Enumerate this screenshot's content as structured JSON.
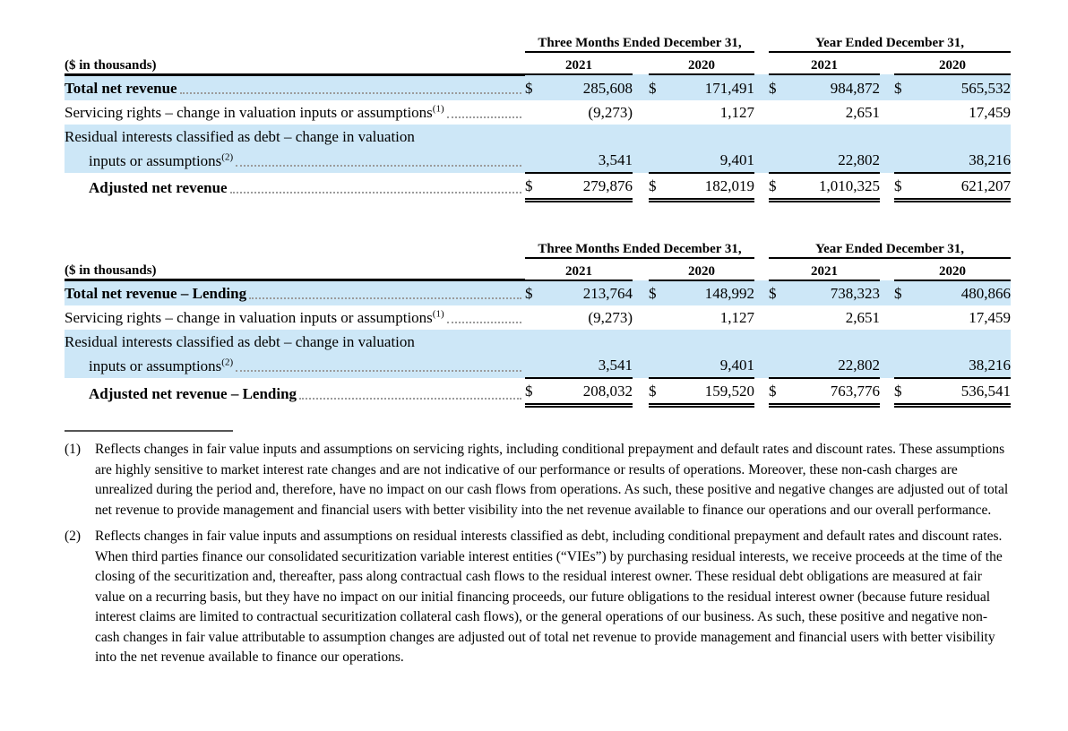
{
  "dollar": "$",
  "highlight_color": "#cde7f7",
  "tables": [
    {
      "name": "adjusted-net-revenue",
      "group_headers": [
        "Three Months Ended December 31,",
        "Year Ended December 31,"
      ],
      "label_header": "($ in thousands)",
      "col_headers": [
        "2021",
        "2020",
        "2021",
        "2020"
      ],
      "rows": [
        {
          "label": "Total net revenue",
          "values": [
            "285,608",
            "171,491",
            "984,872",
            "565,532"
          ]
        },
        {
          "label": "Servicing rights – change in valuation inputs or assumptions",
          "sup": "(1)",
          "values": [
            "(9,273)",
            "1,127",
            "2,651",
            "17,459"
          ]
        },
        {
          "label": "Residual interests classified as debt – change in valuation",
          "label2": "inputs or assumptions",
          "sup": "(2)",
          "values": [
            "3,541",
            "9,401",
            "22,802",
            "38,216"
          ]
        },
        {
          "label": "Adjusted net revenue",
          "values": [
            "279,876",
            "182,019",
            "1,010,325",
            "621,207"
          ]
        }
      ]
    },
    {
      "name": "adjusted-net-revenue-lending",
      "group_headers": [
        "Three Months Ended December 31,",
        "Year Ended December 31,"
      ],
      "label_header": "($ in thousands)",
      "col_headers": [
        "2021",
        "2020",
        "2021",
        "2020"
      ],
      "rows": [
        {
          "label": "Total net revenue – Lending",
          "values": [
            "213,764",
            "148,992",
            "738,323",
            "480,866"
          ]
        },
        {
          "label": "Servicing rights – change in valuation inputs or assumptions",
          "sup": "(1)",
          "values": [
            "(9,273)",
            "1,127",
            "2,651",
            "17,459"
          ]
        },
        {
          "label": "Residual interests classified as debt – change in valuation",
          "label2": "inputs or assumptions",
          "sup": "(2)",
          "values": [
            "3,541",
            "9,401",
            "22,802",
            "38,216"
          ]
        },
        {
          "label": "Adjusted net revenue – Lending",
          "values": [
            "208,032",
            "159,520",
            "763,776",
            "536,541"
          ]
        }
      ]
    }
  ],
  "footnotes": [
    {
      "num": "(1)",
      "text": "Reflects changes in fair value inputs and assumptions on servicing rights, including conditional prepayment and default rates and discount rates. These assumptions are highly sensitive to market interest rate changes and are not indicative of our performance or results of operations. Moreover, these non-cash charges are unrealized during the period and, therefore, have no impact on our cash flows from operations. As such, these positive and negative changes are adjusted out of total net revenue to provide management and financial users with better visibility into the net revenue available to finance our operations and our overall performance."
    },
    {
      "num": "(2)",
      "text": "Reflects changes in fair value inputs and assumptions on residual interests classified as debt, including conditional prepayment and default rates and discount rates. When third parties finance our consolidated securitization variable interest entities (“VIEs”) by purchasing residual interests, we receive proceeds at the time of the closing of the securitization and, thereafter, pass along contractual cash flows to the residual interest owner. These residual debt obligations are measured at fair value on a recurring basis, but they have no impact on our initial financing proceeds, our future obligations to the residual interest owner (because future residual interest claims are limited to contractual securitization collateral cash flows), or the general operations of our business. As such, these positive and negative non-cash changes in fair value attributable to assumption changes are adjusted out of total net revenue to provide management and financial users with better visibility into the net revenue available to finance our operations."
    }
  ]
}
